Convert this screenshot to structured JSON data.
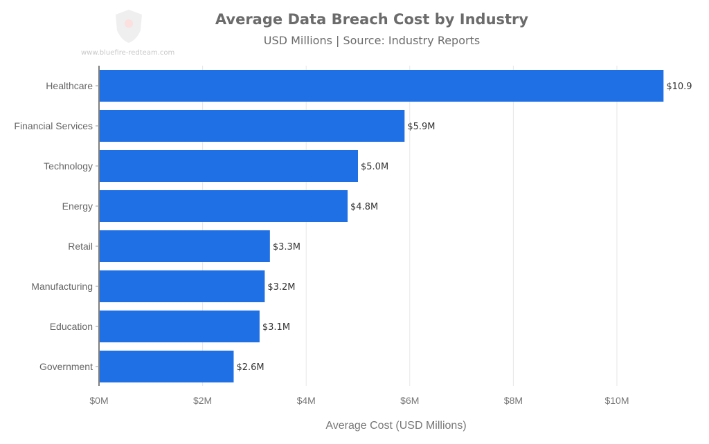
{
  "watermark": {
    "text": "www.bluefire-redteam.com"
  },
  "chart_data": {
    "type": "bar",
    "orientation": "horizontal",
    "title": "Average Data Breach Cost by Industry",
    "subtitle": "USD Millions | Source: Industry Reports",
    "xlabel": "Average Cost (USD Millions)",
    "ylabel": "",
    "xlim": [
      0,
      11
    ],
    "xticks": [
      0,
      2,
      4,
      6,
      8,
      10
    ],
    "xtick_labels": [
      "$0M",
      "$2M",
      "$4M",
      "$6M",
      "$8M",
      "$10M"
    ],
    "grid": "vertical",
    "categories": [
      "Healthcare",
      "Financial Services",
      "Technology",
      "Energy",
      "Retail",
      "Manufacturing",
      "Education",
      "Government"
    ],
    "values": [
      10.9,
      5.9,
      5.0,
      4.8,
      3.3,
      3.2,
      3.1,
      2.6
    ],
    "data_labels": [
      "$10.9",
      "$5.9M",
      "$5.0M",
      "$4.8M",
      "$3.3M",
      "$3.2M",
      "$3.1M",
      "$2.6M"
    ],
    "bar_color": "#1f6fe5"
  }
}
